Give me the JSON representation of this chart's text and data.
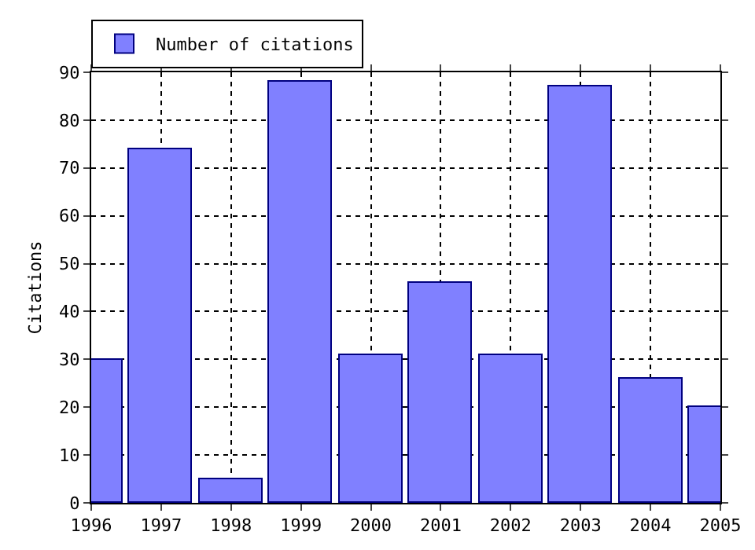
{
  "chart_data": {
    "type": "bar",
    "ylabel": "Citations",
    "x": [
      1996,
      1997,
      1998,
      1999,
      2000,
      2001,
      2002,
      2003,
      2004,
      2005
    ],
    "series": [
      {
        "name": "Number of citations",
        "color": "#8080ff",
        "values": [
          30,
          74,
          5,
          88,
          31,
          46,
          31,
          87,
          26,
          20
        ]
      }
    ],
    "xlim": [
      1996,
      2005
    ],
    "xticks": [
      1996,
      1997,
      1998,
      1999,
      2000,
      2001,
      2002,
      2003,
      2004,
      2005
    ],
    "ylim": [
      0,
      90
    ],
    "yticks": [
      0,
      10,
      20,
      30,
      40,
      50,
      60,
      70,
      80,
      90
    ],
    "grid": true,
    "legend": "top left",
    "line_style": "dotted"
  }
}
